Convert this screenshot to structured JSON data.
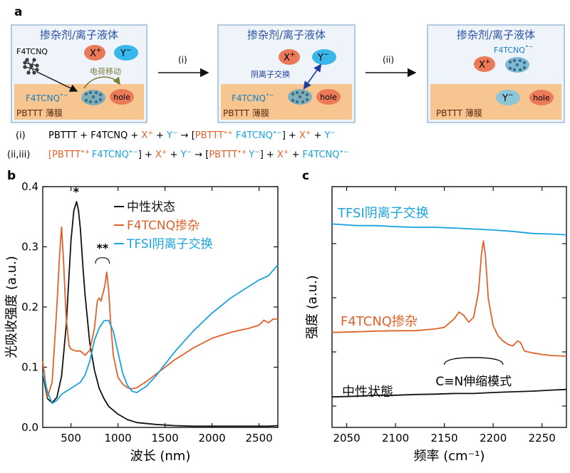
{
  "panel_a": {
    "label": "a",
    "boxes": [
      {
        "title": "掺杂剂/离子液体",
        "dopant": "F4TCNQ",
        "cation": "X",
        "anion": "Y",
        "charge_transfer": "电荷移动",
        "dopant_anion": "F4TCNQ",
        "hole": "hole",
        "film": "PBTTT 薄膜"
      },
      {
        "title": "掺杂剂/离子液体",
        "cation": "X",
        "anion": "Y",
        "exchange": "阴离子交换",
        "dopant_anion": "F4TCNQ",
        "hole": "hole",
        "film": "PBTTT 薄膜"
      },
      {
        "title": "掺杂剂/离子液体",
        "dopant_anion": "F4TCNQ",
        "cation": "X",
        "anion": "Y",
        "hole": "hole",
        "film": "PBTTT 薄膜"
      }
    ],
    "arrows": [
      "(i)",
      "(ii)"
    ],
    "eq1": {
      "label": "(i)",
      "text1": "PBTTT + F4TCNQ + ",
      "x": "X",
      "plus1": " + ",
      "y": "Y",
      "arrow": " → [",
      "p": "PBTTT",
      "sp": " ",
      "f": "F4TCNQ",
      "close": "] + ",
      "x2": "X",
      "plus2": " + ",
      "y2": "Y"
    },
    "eq2": {
      "label": "(ii,iii)",
      "open": "[",
      "p": "PBTTT",
      "f": "F4TCNQ",
      "close1": "] + ",
      "x": "X",
      "plus1": " + ",
      "y": "Y",
      "arrow": " → [",
      "p2": "PBTTT",
      "y3": "Y",
      "close2": "] + ",
      "x2": "X",
      "plus2": " + ",
      "f2": "F4TCNQ"
    }
  },
  "colors": {
    "black": "#111111",
    "orange": "#e0622a",
    "blue": "#1aa3dc",
    "box_bg": "#eef4fa",
    "box_border": "#8fb1d0",
    "film": "#f7c58f",
    "anion_blue": "#3ab7ea",
    "hole_red": "#ea7a58",
    "title_blue": "#2a54a0"
  },
  "chart_data": [
    {
      "type": "line",
      "panel": "b",
      "xlabel": "波长 (nm)",
      "ylabel": "光吸收强度 (a.u.)",
      "xlim": [
        200,
        2700
      ],
      "ylim": [
        0,
        0.4
      ],
      "xticks": [
        "500",
        "1000",
        "1500",
        "2000",
        "2500"
      ],
      "yticks": [
        "0.0",
        "0.1",
        "0.2",
        "0.3",
        "0.4"
      ],
      "annotations": [
        "*",
        "**"
      ],
      "legend_position": "top-right",
      "series": [
        {
          "name": "中性状态",
          "color": "#111111",
          "x": [
            200,
            250,
            300,
            350,
            400,
            450,
            500,
            530,
            560,
            580,
            600,
            630,
            650,
            700,
            750,
            800,
            850,
            900,
            1000,
            1100,
            1200,
            1400,
            1600,
            1800,
            2000,
            2200,
            2400,
            2600,
            2700
          ],
          "y": [
            0.09,
            0.048,
            0.041,
            0.05,
            0.085,
            0.17,
            0.31,
            0.36,
            0.375,
            0.36,
            0.33,
            0.26,
            0.22,
            0.14,
            0.095,
            0.065,
            0.048,
            0.035,
            0.022,
            0.013,
            0.008,
            0.005,
            0.003,
            0.002,
            0.002,
            0.002,
            0.002,
            0.002,
            0.003
          ]
        },
        {
          "name": "F4TCNQ掺杂",
          "color": "#e0622a",
          "x": [
            200,
            250,
            300,
            350,
            380,
            400,
            420,
            450,
            480,
            500,
            550,
            600,
            650,
            700,
            750,
            780,
            800,
            820,
            860,
            880,
            900,
            920,
            950,
            1000,
            1050,
            1100,
            1150,
            1200,
            1300,
            1400,
            1500,
            1600,
            1800,
            2000,
            2200,
            2400,
            2500,
            2550,
            2600,
            2650,
            2700
          ],
          "y": [
            0.11,
            0.05,
            0.075,
            0.2,
            0.29,
            0.333,
            0.28,
            0.18,
            0.135,
            0.13,
            0.127,
            0.127,
            0.12,
            0.128,
            0.165,
            0.21,
            0.215,
            0.21,
            0.235,
            0.258,
            0.23,
            0.18,
            0.12,
            0.083,
            0.072,
            0.066,
            0.064,
            0.066,
            0.076,
            0.088,
            0.1,
            0.112,
            0.132,
            0.148,
            0.158,
            0.165,
            0.17,
            0.178,
            0.174,
            0.18,
            0.18
          ]
        },
        {
          "name": "TFSI阴离子交换",
          "color": "#1aa3dc",
          "x": [
            200,
            250,
            300,
            350,
            400,
            450,
            500,
            550,
            600,
            650,
            700,
            750,
            800,
            850,
            900,
            950,
            1000,
            1050,
            1100,
            1150,
            1200,
            1300,
            1400,
            1500,
            1600,
            1800,
            2000,
            2200,
            2400,
            2500,
            2600,
            2700
          ],
          "y": [
            0.09,
            0.06,
            0.04,
            0.045,
            0.055,
            0.06,
            0.065,
            0.07,
            0.075,
            0.087,
            0.11,
            0.145,
            0.165,
            0.177,
            0.178,
            0.16,
            0.125,
            0.09,
            0.07,
            0.06,
            0.058,
            0.068,
            0.085,
            0.105,
            0.125,
            0.16,
            0.19,
            0.215,
            0.235,
            0.245,
            0.252,
            0.27
          ]
        }
      ]
    },
    {
      "type": "line",
      "panel": "c",
      "xlabel": "频率 (cm⁻¹)",
      "ylabel": "强度 (a.u.)",
      "xlim": [
        2035,
        2275
      ],
      "xticks": [
        "2050",
        "2100",
        "2150",
        "2200",
        "2250"
      ],
      "annotations": [
        "C≡N伸缩模式"
      ],
      "series": [
        {
          "name": "TFSI阴离子交换",
          "color": "#1aa3dc",
          "x": [
            2035,
            2060,
            2080,
            2100,
            2120,
            2140,
            2160,
            2180,
            2200,
            2220,
            2240,
            2260,
            2275
          ],
          "y": [
            6.9,
            6.85,
            6.85,
            6.82,
            6.8,
            6.8,
            6.78,
            6.75,
            6.72,
            6.68,
            6.62,
            6.6,
            6.58
          ]
        },
        {
          "name": "F4TCNQ掺杂",
          "color": "#e0622a",
          "x": [
            2035,
            2060,
            2080,
            2100,
            2120,
            2140,
            2150,
            2160,
            2165,
            2170,
            2175,
            2180,
            2185,
            2188,
            2190,
            2192,
            2195,
            2200,
            2205,
            2210,
            2215,
            2220,
            2225,
            2228,
            2232,
            2240,
            2250,
            2260,
            2275
          ],
          "y": [
            3.7,
            3.72,
            3.74,
            3.75,
            3.75,
            3.8,
            3.85,
            4.1,
            4.3,
            4.2,
            4.0,
            4.15,
            4.9,
            6.0,
            6.4,
            6.0,
            4.7,
            3.9,
            3.6,
            3.45,
            3.35,
            3.3,
            3.45,
            3.4,
            3.15,
            3.1,
            3.05,
            3.02,
            3.0
          ]
        },
        {
          "name": "中性状態",
          "color": "#111111",
          "x": [
            2035,
            2060,
            2080,
            2100,
            2120,
            2140,
            2160,
            2180,
            2200,
            2220,
            2240,
            2260,
            2275
          ],
          "y": [
            1.8,
            1.82,
            1.85,
            1.85,
            1.87,
            1.88,
            1.9,
            1.9,
            1.93,
            1.95,
            1.97,
            2.0,
            2.02
          ]
        }
      ],
      "ylim": [
        0.9,
        8.0
      ]
    }
  ]
}
